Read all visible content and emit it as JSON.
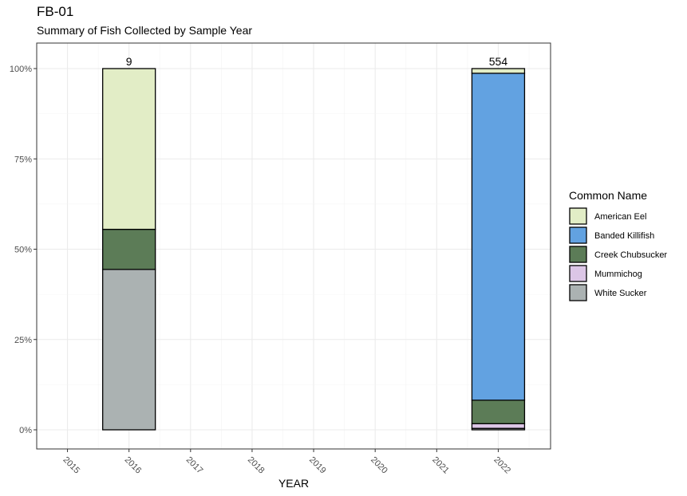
{
  "title": "FB-01",
  "subtitle": "Summary of Fish Collected by Sample Year",
  "chart_data": {
    "type": "bar",
    "stacked": true,
    "percent": true,
    "xlabel": "YEAR",
    "ylabel": "",
    "x_ticks": [
      "2015",
      "2016",
      "2017",
      "2018",
      "2019",
      "2020",
      "2021",
      "2022"
    ],
    "x_range": [
      2014.5,
      2022.85
    ],
    "y_ticks": [
      "0%",
      "25%",
      "50%",
      "75%",
      "100%"
    ],
    "ylim": [
      0,
      1
    ],
    "grid": true,
    "legend_title": "Common Name",
    "legend_position": "right",
    "series": [
      {
        "name": "American Eel",
        "color": "#e2edc6"
      },
      {
        "name": "Banded Killifish",
        "color": "#62a2e1"
      },
      {
        "name": "Creek Chubsucker",
        "color": "#5c7c57"
      },
      {
        "name": "Mummichog",
        "color": "#dcc6e6"
      },
      {
        "name": "White Sucker",
        "color": "#abb2b2"
      }
    ],
    "bars": [
      {
        "year": 2016,
        "total": "9",
        "segments": [
          {
            "series": "White Sucker",
            "value": 0.444
          },
          {
            "series": "Creek Chubsucker",
            "value": 0.111
          },
          {
            "series": "American Eel",
            "value": 0.445
          }
        ]
      },
      {
        "year": 2022,
        "total": "554",
        "segments": [
          {
            "series": "White Sucker",
            "value": 0.004
          },
          {
            "series": "Mummichog",
            "value": 0.013
          },
          {
            "series": "Creek Chubsucker",
            "value": 0.065
          },
          {
            "series": "Banded Killifish",
            "value": 0.905
          },
          {
            "series": "American Eel",
            "value": 0.013
          }
        ]
      }
    ]
  }
}
